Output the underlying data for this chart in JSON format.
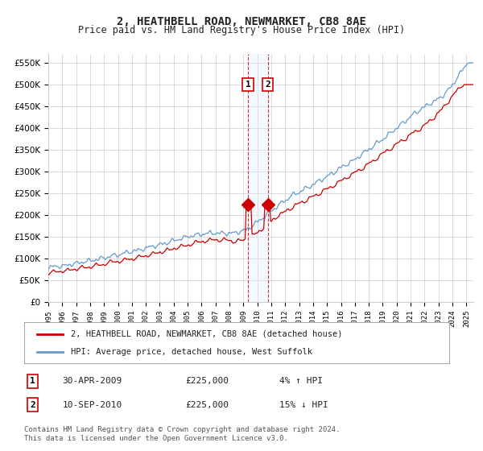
{
  "title": "2, HEATHBELL ROAD, NEWMARKET, CB8 8AE",
  "subtitle": "Price paid vs. HM Land Registry's House Price Index (HPI)",
  "red_label": "2, HEATHBELL ROAD, NEWMARKET, CB8 8AE (detached house)",
  "blue_label": "HPI: Average price, detached house, West Suffolk",
  "transaction1_date": "30-APR-2009",
  "transaction1_price": 225000,
  "transaction1_hpi": "4% ↑ HPI",
  "transaction2_date": "10-SEP-2010",
  "transaction2_price": 225000,
  "transaction2_hpi": "15% ↓ HPI",
  "footnote": "Contains HM Land Registry data © Crown copyright and database right 2024.\nThis data is licensed under the Open Government Licence v3.0.",
  "ylim": [
    0,
    570000
  ],
  "start_year": 1995,
  "end_year": 2025,
  "red_color": "#cc0000",
  "blue_color": "#6699cc",
  "background_color": "#ffffff",
  "grid_color": "#cccccc",
  "highlight_color": "#ddeeff"
}
